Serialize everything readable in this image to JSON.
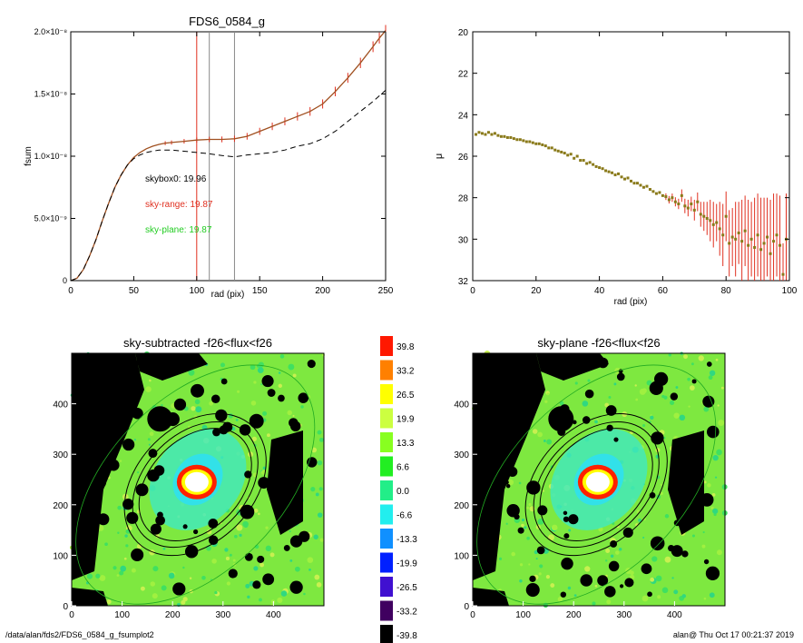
{
  "footer": {
    "path": "/data/alan/fds2/FDS6_0584_g_fsumplot2",
    "user_time": "alan@  Thu Oct 17 00:21:37 2019"
  },
  "colors": {
    "sky_range": "#e03020",
    "sky_plane": "#22cc22",
    "mu_points": "#8a7a1a",
    "error_bars": "#e03020"
  },
  "chart_data": [
    {
      "type": "line",
      "title": "FDS6_0584_g",
      "xlabel": "rad (pix)",
      "ylabel": "fsum",
      "xlim": [
        0,
        250
      ],
      "ylim": [
        0,
        2e-08
      ],
      "xticks": [
        0,
        50,
        100,
        150,
        200,
        250
      ],
      "yticks": [
        "0",
        "5.0×10⁻⁹",
        "1.0×10⁻⁸",
        "1.5×10⁻⁸",
        "2.0×10⁻⁸"
      ],
      "vlines": [
        {
          "x": 100,
          "color": "red"
        },
        {
          "x": 110,
          "color": "gray"
        },
        {
          "x": 130,
          "color": "gray"
        }
      ],
      "annotations": [
        {
          "label": "skybox0:",
          "value": "19.96",
          "color": "black"
        },
        {
          "label": "sky-range:",
          "value": "19.87",
          "color": "red"
        },
        {
          "label": "sky-plane:",
          "value": "19.87",
          "color": "green"
        }
      ],
      "series": [
        {
          "style": "solid-red-with-errors",
          "x": [
            0,
            5,
            10,
            15,
            20,
            25,
            30,
            35,
            40,
            45,
            50,
            55,
            60,
            65,
            70,
            75,
            80,
            90,
            100,
            110,
            120,
            130,
            140,
            150,
            160,
            170,
            180,
            190,
            200,
            210,
            220,
            230,
            240,
            245,
            250
          ],
          "y": [
            0,
            2e-10,
            9e-10,
            2e-09,
            3.3e-09,
            4.8e-09,
            6.2e-09,
            7.5e-09,
            8.5e-09,
            9.3e-09,
            9.9e-09,
            1.03e-08,
            1.06e-08,
            1.08e-08,
            1.095e-08,
            1.105e-08,
            1.11e-08,
            1.12e-08,
            1.13e-08,
            1.135e-08,
            1.135e-08,
            1.14e-08,
            1.16e-08,
            1.2e-08,
            1.24e-08,
            1.28e-08,
            1.32e-08,
            1.36e-08,
            1.42e-08,
            1.52e-08,
            1.63e-08,
            1.75e-08,
            1.88e-08,
            1.95e-08,
            2.01e-08
          ]
        },
        {
          "style": "dashed-black",
          "x": [
            0,
            5,
            10,
            15,
            20,
            25,
            30,
            35,
            40,
            45,
            50,
            55,
            60,
            65,
            70,
            80,
            90,
            100,
            110,
            120,
            130,
            140,
            150,
            160,
            170,
            180,
            190,
            200,
            210,
            220,
            230,
            240,
            250
          ],
          "y": [
            0,
            2e-10,
            9e-10,
            2e-09,
            3.3e-09,
            4.8e-09,
            6.2e-09,
            7.5e-09,
            8.5e-09,
            9.3e-09,
            9.8e-09,
            1.01e-08,
            1.03e-08,
            1.04e-08,
            1.05e-08,
            1.05e-08,
            1.04e-08,
            1.03e-08,
            1.02e-08,
            1.005e-08,
            9.95e-09,
            1.01e-08,
            1.02e-08,
            1.03e-08,
            1.05e-08,
            1.08e-08,
            1.1e-08,
            1.14e-08,
            1.2e-08,
            1.28e-08,
            1.36e-08,
            1.44e-08,
            1.53e-08
          ]
        }
      ]
    },
    {
      "type": "scatter",
      "xlabel": "rad (pix)",
      "ylabel": "μ",
      "xlim": [
        0,
        100
      ],
      "ylim": [
        32,
        20
      ],
      "xticks": [
        0,
        20,
        40,
        60,
        80,
        100
      ],
      "yticks": [
        20,
        22,
        24,
        26,
        28,
        30,
        32
      ],
      "points": {
        "x": [
          1,
          2,
          3,
          4,
          5,
          6,
          7,
          8,
          9,
          10,
          11,
          12,
          13,
          14,
          15,
          16,
          17,
          18,
          19,
          20,
          21,
          22,
          23,
          24,
          25,
          26,
          27,
          28,
          29,
          30,
          31,
          32,
          33,
          34,
          35,
          36,
          37,
          38,
          39,
          40,
          41,
          42,
          43,
          44,
          45,
          46,
          47,
          48,
          49,
          50,
          51,
          52,
          53,
          54,
          55,
          56,
          57,
          58,
          59,
          60,
          61,
          62,
          63,
          64,
          65,
          66,
          67,
          68,
          69,
          70,
          71,
          72,
          73,
          74,
          75,
          76,
          77,
          78,
          79,
          80,
          81,
          82,
          83,
          84,
          85,
          86,
          87,
          88,
          89,
          90,
          91,
          92,
          93,
          94,
          95,
          96,
          97,
          98,
          99
        ],
        "y": [
          24.95,
          24.85,
          24.9,
          24.95,
          24.85,
          24.95,
          24.9,
          25.0,
          25.05,
          25.05,
          25.1,
          25.1,
          25.15,
          25.2,
          25.2,
          25.25,
          25.3,
          25.3,
          25.35,
          25.4,
          25.4,
          25.45,
          25.5,
          25.6,
          25.6,
          25.7,
          25.75,
          25.8,
          25.85,
          25.95,
          25.9,
          26.1,
          26.0,
          26.2,
          26.2,
          26.35,
          26.3,
          26.4,
          26.5,
          26.55,
          26.6,
          26.7,
          26.75,
          26.8,
          26.9,
          26.85,
          27.0,
          27.1,
          27.05,
          27.2,
          27.3,
          27.3,
          27.4,
          27.5,
          27.45,
          27.6,
          27.7,
          27.8,
          27.75,
          27.9,
          27.95,
          28.1,
          28.0,
          28.2,
          28.3,
          27.9,
          28.4,
          28.5,
          28.3,
          28.6,
          28.2,
          28.8,
          28.9,
          29.0,
          29.1,
          29.3,
          29.2,
          29.5,
          29.8,
          28.9,
          30.2,
          29.9,
          30.0,
          29.7,
          30.1,
          29.6,
          30.3,
          30.0,
          30.4,
          29.8,
          30.5,
          30.2,
          29.9,
          30.7,
          30.1,
          29.8,
          30.3,
          31.7,
          30.0
        ],
        "err": [
          0.05,
          0.05,
          0.05,
          0.05,
          0.05,
          0.05,
          0.05,
          0.05,
          0.05,
          0.05,
          0.05,
          0.05,
          0.05,
          0.05,
          0.05,
          0.05,
          0.05,
          0.05,
          0.05,
          0.05,
          0.05,
          0.05,
          0.05,
          0.05,
          0.05,
          0.05,
          0.05,
          0.05,
          0.05,
          0.05,
          0.05,
          0.05,
          0.05,
          0.05,
          0.05,
          0.05,
          0.05,
          0.05,
          0.05,
          0.05,
          0.06,
          0.06,
          0.06,
          0.06,
          0.07,
          0.07,
          0.07,
          0.08,
          0.08,
          0.08,
          0.09,
          0.09,
          0.1,
          0.1,
          0.1,
          0.12,
          0.12,
          0.13,
          0.14,
          0.15,
          0.16,
          0.18,
          0.2,
          0.22,
          0.25,
          0.3,
          0.35,
          0.4,
          0.35,
          0.5,
          0.45,
          0.6,
          0.7,
          0.8,
          1.0,
          1.1,
          0.9,
          1.3,
          1.5,
          1.2,
          1.6,
          1.4,
          1.8,
          1.5,
          2.0,
          1.7,
          2.2,
          1.8,
          2.4,
          2.0,
          2.5,
          2.2,
          1.9,
          2.6,
          2.3,
          2.0,
          2.4,
          1.5,
          2.2
        ]
      }
    },
    {
      "type": "heatmap",
      "title": "sky-subtracted -f26<flux<f26",
      "xlim": [
        0,
        500
      ],
      "ylim": [
        0,
        500
      ],
      "xticks": [
        0,
        100,
        200,
        300,
        400
      ],
      "yticks": [
        0,
        100,
        200,
        300,
        400
      ]
    },
    {
      "type": "heatmap",
      "title": "sky-plane -f26<flux<f26",
      "xlim": [
        0,
        500
      ],
      "ylim": [
        0,
        500
      ],
      "xticks": [
        0,
        100,
        200,
        300,
        400
      ],
      "yticks": [
        0,
        100,
        200,
        300,
        400
      ]
    },
    {
      "type": "colorbar",
      "labels": [
        "39.8",
        "33.2",
        "26.5",
        "19.9",
        "13.3",
        "6.6",
        "0.0",
        "-6.6",
        "-13.3",
        "-19.9",
        "-26.5",
        "-33.2",
        "-39.8"
      ],
      "colors": [
        "#ff1800",
        "#ff8000",
        "#ffff00",
        "#ccff40",
        "#88ff20",
        "#22ee22",
        "#22ee88",
        "#22eeee",
        "#1090ff",
        "#0020ff",
        "#4010d0",
        "#400060",
        "#000000"
      ]
    }
  ]
}
